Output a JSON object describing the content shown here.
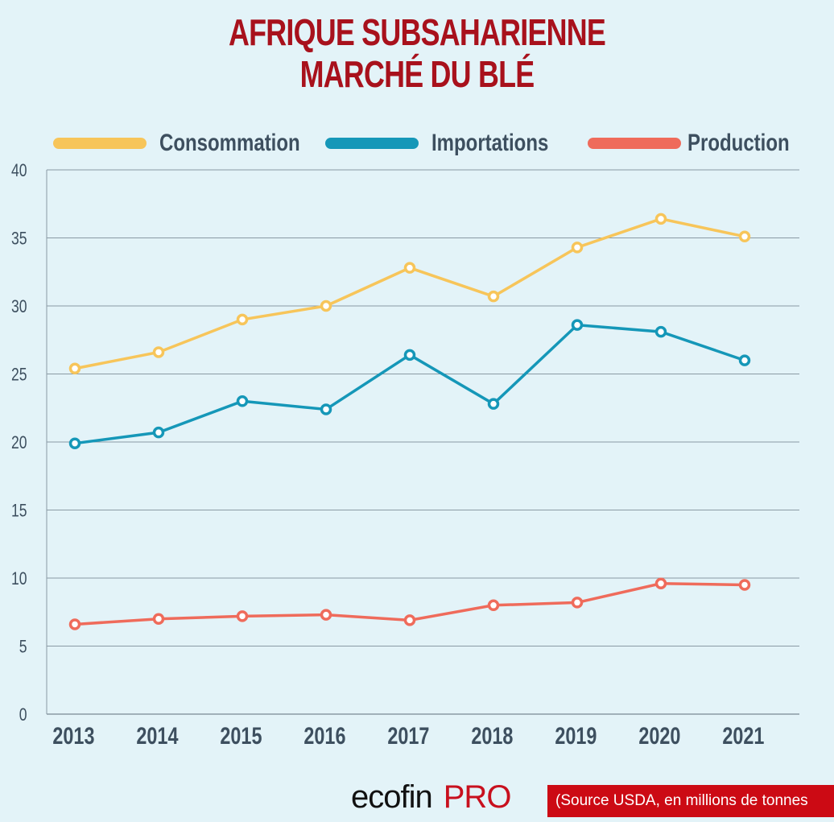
{
  "title_lines": [
    "AFRIQUE SUBSAHARIENNE",
    "MARCHÉ DU BLÉ"
  ],
  "chart_data": {
    "type": "line",
    "title": "AFRIQUE SUBSAHARIENNE MARCHÉ DU BLÉ",
    "xlabel": "",
    "ylabel": "",
    "categories": [
      "2013",
      "2014",
      "2015",
      "2016",
      "2017",
      "2018",
      "2019",
      "2020",
      "2021"
    ],
    "yticks": [
      "0",
      "5",
      "10",
      "15",
      "20",
      "25",
      "30",
      "35",
      "40"
    ],
    "ylim": [
      0,
      40
    ],
    "grid": true,
    "legend_position": "top",
    "series": [
      {
        "name": "Consommation",
        "color": "#f7c55a",
        "values": [
          25.4,
          26.6,
          29.0,
          30.0,
          32.8,
          30.7,
          34.3,
          36.4,
          35.1
        ]
      },
      {
        "name": "Importations",
        "color": "#1597b8",
        "values": [
          19.9,
          20.7,
          23.0,
          22.4,
          26.4,
          22.8,
          28.6,
          28.1,
          26.0
        ]
      },
      {
        "name": "Production",
        "color": "#ef6b5b",
        "values": [
          6.6,
          7.0,
          7.2,
          7.3,
          6.9,
          8.0,
          8.2,
          9.6,
          9.5
        ]
      }
    ]
  },
  "footer": {
    "logo_eco": "ecofin",
    "logo_pro": "PRO",
    "source": "(Source USDA, en millions de tonnes"
  }
}
